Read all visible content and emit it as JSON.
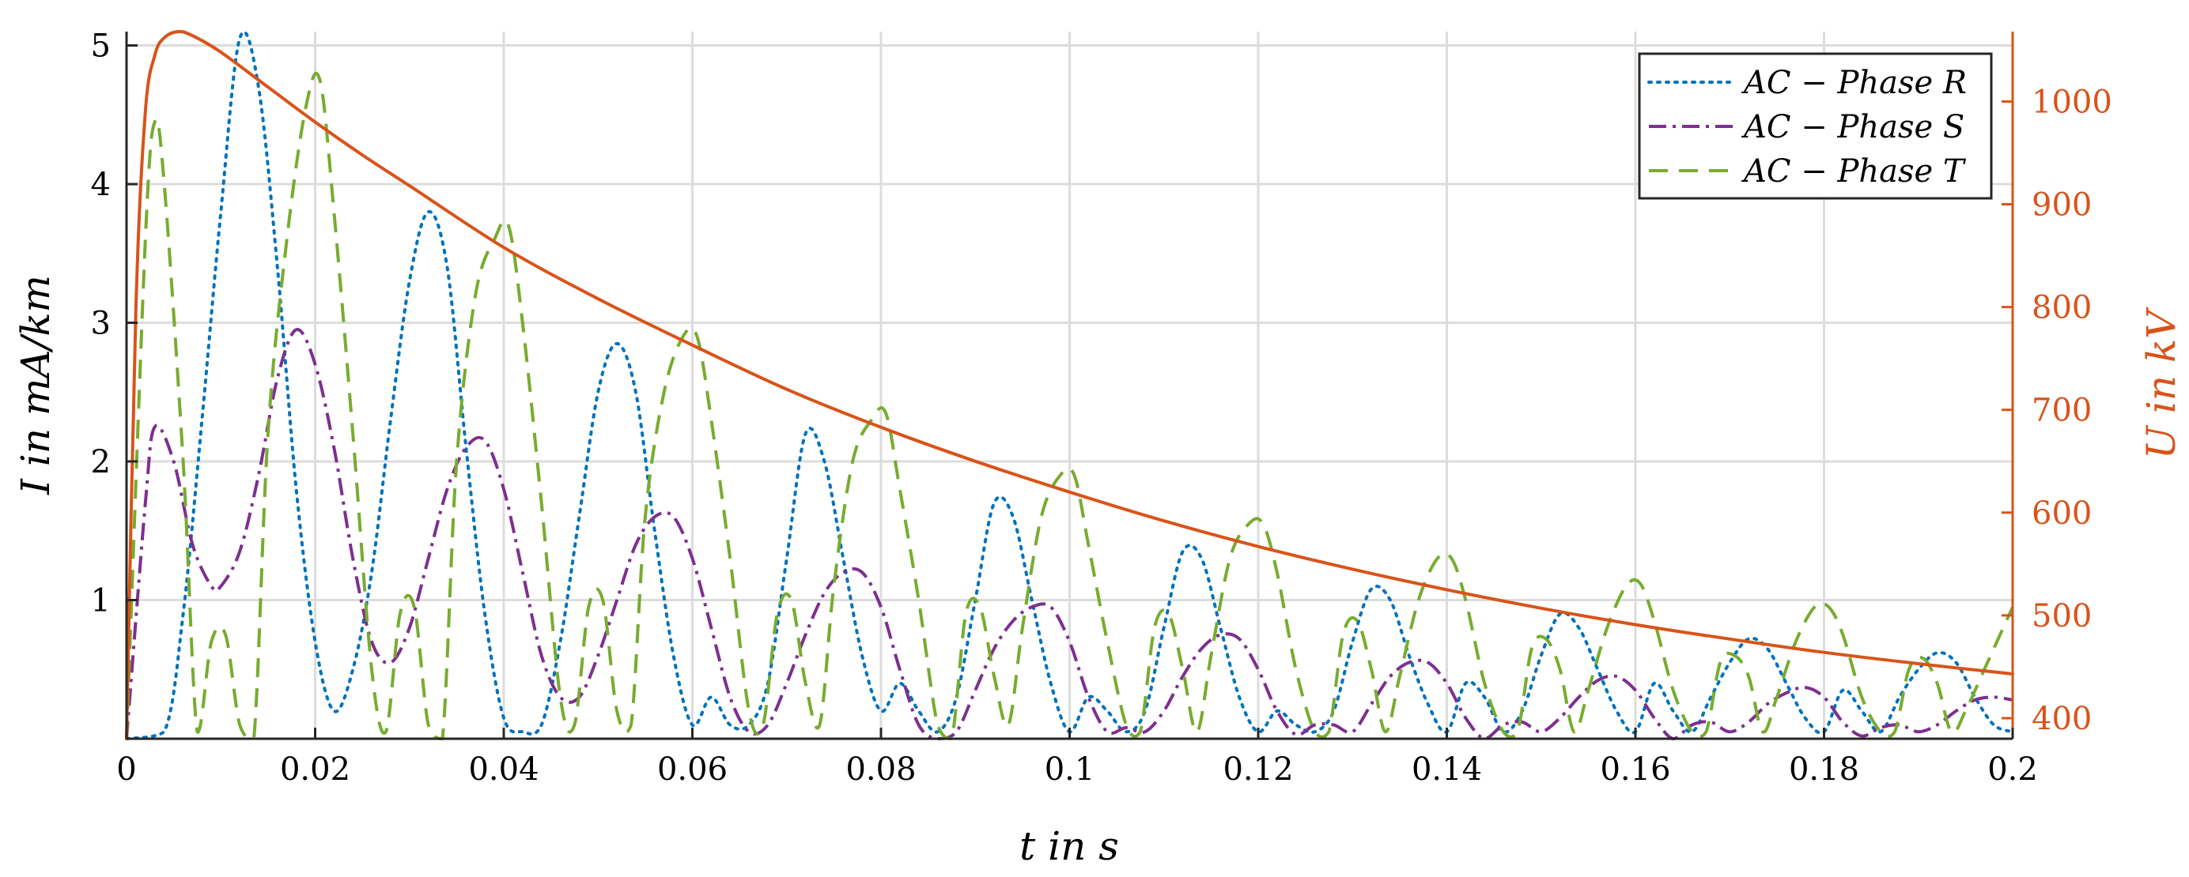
{
  "chart_data": {
    "type": "line",
    "xlabel": "t in s",
    "ylabel": "I in mA/km",
    "y2label": "U in kV",
    "xlim": [
      0,
      0.2
    ],
    "ylim": [
      0,
      5.1
    ],
    "y2lim": [
      380,
      1068
    ],
    "xticks": [
      0,
      0.02,
      0.04,
      0.06,
      0.08,
      0.1,
      0.12,
      0.14,
      0.16,
      0.18,
      0.2
    ],
    "xtick_labels": [
      "0",
      "0.02",
      "0.04",
      "0.06",
      "0.08",
      "0.1",
      "0.12",
      "0.14",
      "0.16",
      "0.18",
      "0.2"
    ],
    "yticks": [
      1,
      2,
      3,
      4,
      5
    ],
    "ytick_labels": [
      "1",
      "2",
      "3",
      "4",
      "5"
    ],
    "y2ticks": [
      400,
      500,
      600,
      700,
      800,
      900,
      1000
    ],
    "y2tick_labels": [
      "400",
      "500",
      "600",
      "700",
      "800",
      "900",
      "1000"
    ],
    "grid": true,
    "legend_position": "top-right",
    "series": [
      {
        "name": "AC − Phase R",
        "axis": "left",
        "style": "dotted",
        "color": "#0072BD",
        "x": [
          0,
          0.004,
          0.006,
          0.008,
          0.01,
          0.012,
          0.014,
          0.016,
          0.018,
          0.02,
          0.022,
          0.024,
          0.026,
          0.028,
          0.03,
          0.032,
          0.034,
          0.036,
          0.038,
          0.04,
          0.042,
          0.044,
          0.046,
          0.048,
          0.05,
          0.052,
          0.054,
          0.056,
          0.058,
          0.06,
          0.062,
          0.064,
          0.066,
          0.068,
          0.07,
          0.072,
          0.074,
          0.076,
          0.078,
          0.08,
          0.082,
          0.084,
          0.086,
          0.088,
          0.09,
          0.092,
          0.094,
          0.096,
          0.098,
          0.1,
          0.102,
          0.104,
          0.106,
          0.108,
          0.11,
          0.112,
          0.114,
          0.116,
          0.118,
          0.12,
          0.122,
          0.124,
          0.126,
          0.128,
          0.13,
          0.132,
          0.134,
          0.136,
          0.138,
          0.14,
          0.142,
          0.144,
          0.146,
          0.148,
          0.15,
          0.152,
          0.154,
          0.156,
          0.158,
          0.16,
          0.162,
          0.164,
          0.166,
          0.168,
          0.17,
          0.172,
          0.174,
          0.176,
          0.178,
          0.18,
          0.182,
          0.184,
          0.186,
          0.188,
          0.19,
          0.192,
          0.194,
          0.196,
          0.198,
          0.2
        ],
        "y": [
          0,
          0.05,
          0.9,
          2.3,
          3.8,
          5.05,
          4.7,
          3.4,
          1.8,
          0.7,
          0.2,
          0.5,
          1.2,
          2.3,
          3.3,
          3.8,
          3.4,
          2.1,
          0.9,
          0.15,
          0.05,
          0.1,
          0.7,
          1.6,
          2.5,
          2.85,
          2.5,
          1.5,
          0.6,
          0.1,
          0.3,
          0.1,
          0.1,
          0.4,
          1.3,
          2.2,
          2.0,
          1.3,
          0.6,
          0.2,
          0.4,
          0.2,
          0.05,
          0.3,
          1.0,
          1.7,
          1.6,
          1.0,
          0.4,
          0.05,
          0.3,
          0.2,
          0.05,
          0.2,
          0.8,
          1.35,
          1.3,
          0.8,
          0.3,
          0.05,
          0.2,
          0.1,
          0.05,
          0.2,
          0.7,
          1.08,
          1.0,
          0.6,
          0.25,
          0.05,
          0.4,
          0.3,
          0.05,
          0.2,
          0.6,
          0.9,
          0.8,
          0.5,
          0.2,
          0.05,
          0.4,
          0.2,
          0.05,
          0.3,
          0.55,
          0.72,
          0.65,
          0.4,
          0.15,
          0.05,
          0.35,
          0.2,
          0.05,
          0.3,
          0.5,
          0.62,
          0.55,
          0.3,
          0.1,
          0.05
        ]
      },
      {
        "name": "AC − Phase S",
        "axis": "left",
        "style": "dashdot",
        "color": "#7E2F8E",
        "x": [
          0,
          0.002,
          0.003,
          0.005,
          0.007,
          0.009,
          0.01,
          0.012,
          0.014,
          0.016,
          0.018,
          0.02,
          0.022,
          0.024,
          0.026,
          0.028,
          0.03,
          0.032,
          0.034,
          0.036,
          0.038,
          0.04,
          0.042,
          0.044,
          0.046,
          0.048,
          0.05,
          0.052,
          0.054,
          0.056,
          0.058,
          0.06,
          0.062,
          0.064,
          0.066,
          0.068,
          0.07,
          0.072,
          0.074,
          0.076,
          0.078,
          0.08,
          0.082,
          0.084,
          0.086,
          0.088,
          0.09,
          0.092,
          0.094,
          0.096,
          0.098,
          0.1,
          0.102,
          0.104,
          0.106,
          0.108,
          0.11,
          0.112,
          0.114,
          0.116,
          0.118,
          0.12,
          0.122,
          0.124,
          0.126,
          0.128,
          0.13,
          0.132,
          0.134,
          0.136,
          0.138,
          0.14,
          0.142,
          0.144,
          0.146,
          0.148,
          0.15,
          0.152,
          0.154,
          0.156,
          0.158,
          0.16,
          0.162,
          0.164,
          0.166,
          0.168,
          0.17,
          0.172,
          0.174,
          0.176,
          0.178,
          0.18,
          0.182,
          0.184,
          0.186,
          0.188,
          0.19,
          0.192,
          0.194,
          0.196,
          0.198,
          0.2
        ],
        "y": [
          0,
          1.7,
          2.25,
          2.0,
          1.4,
          1.1,
          1.1,
          1.35,
          1.9,
          2.6,
          2.95,
          2.7,
          2.1,
          1.3,
          0.7,
          0.55,
          0.8,
          1.3,
          1.8,
          2.1,
          2.15,
          1.8,
          1.2,
          0.6,
          0.3,
          0.3,
          0.6,
          1.0,
          1.4,
          1.6,
          1.6,
          1.3,
          0.8,
          0.3,
          0.05,
          0.1,
          0.4,
          0.75,
          1.05,
          1.2,
          1.2,
          0.95,
          0.5,
          0.1,
          0.0,
          0.05,
          0.35,
          0.65,
          0.85,
          0.95,
          0.95,
          0.7,
          0.3,
          0.05,
          0.08,
          0.05,
          0.2,
          0.45,
          0.65,
          0.75,
          0.72,
          0.5,
          0.2,
          0.03,
          0.1,
          0.1,
          0.05,
          0.25,
          0.45,
          0.55,
          0.55,
          0.4,
          0.15,
          0.0,
          0.1,
          0.12,
          0.05,
          0.15,
          0.3,
          0.42,
          0.45,
          0.35,
          0.15,
          0.0,
          0.1,
          0.12,
          0.05,
          0.12,
          0.25,
          0.33,
          0.37,
          0.3,
          0.12,
          0.02,
          0.08,
          0.1,
          0.05,
          0.1,
          0.2,
          0.28,
          0.3,
          0.28
        ]
      },
      {
        "name": "AC − Phase T",
        "axis": "left",
        "style": "dashed",
        "color": "#77AC30",
        "x": [
          0,
          0.002,
          0.003,
          0.004,
          0.006,
          0.0075,
          0.009,
          0.0105,
          0.012,
          0.0135,
          0.015,
          0.017,
          0.019,
          0.0205,
          0.022,
          0.024,
          0.026,
          0.0275,
          0.029,
          0.0305,
          0.032,
          0.0335,
          0.035,
          0.037,
          0.039,
          0.0405,
          0.042,
          0.044,
          0.046,
          0.0475,
          0.049,
          0.0505,
          0.052,
          0.0535,
          0.055,
          0.057,
          0.059,
          0.0605,
          0.062,
          0.064,
          0.066,
          0.0675,
          0.069,
          0.0705,
          0.072,
          0.0735,
          0.075,
          0.077,
          0.079,
          0.0805,
          0.082,
          0.084,
          0.086,
          0.0875,
          0.089,
          0.0905,
          0.092,
          0.0935,
          0.095,
          0.097,
          0.099,
          0.1005,
          0.102,
          0.104,
          0.106,
          0.1075,
          0.109,
          0.1105,
          0.112,
          0.1135,
          0.115,
          0.117,
          0.119,
          0.1205,
          0.122,
          0.124,
          0.126,
          0.1275,
          0.129,
          0.1305,
          0.132,
          0.1335,
          0.135,
          0.137,
          0.139,
          0.1405,
          0.142,
          0.144,
          0.146,
          0.1475,
          0.149,
          0.1505,
          0.152,
          0.1535,
          0.155,
          0.157,
          0.159,
          0.1605,
          0.162,
          0.164,
          0.166,
          0.1675,
          0.169,
          0.1705,
          0.172,
          0.1735,
          0.175,
          0.177,
          0.179,
          0.1805,
          0.182,
          0.184,
          0.186,
          0.1875,
          0.189,
          0.1905,
          0.192,
          0.1935,
          0.195,
          0.197,
          0.2
        ],
        "y": [
          0,
          3.6,
          4.45,
          4.0,
          2.0,
          0.05,
          0.7,
          0.75,
          0.1,
          0.0,
          2.2,
          3.6,
          4.55,
          4.75,
          3.8,
          2.2,
          0.5,
          0.05,
          0.9,
          0.95,
          0.1,
          0.0,
          2.0,
          3.2,
          3.6,
          3.7,
          3.0,
          1.7,
          0.3,
          0.1,
          0.95,
          1.0,
          0.2,
          0.1,
          1.6,
          2.5,
          2.9,
          2.9,
          2.3,
          1.3,
          0.2,
          0.1,
          0.9,
          1.0,
          0.4,
          0.1,
          1.1,
          2.0,
          2.3,
          2.35,
          1.8,
          1.0,
          0.1,
          0.0,
          0.9,
          0.95,
          0.45,
          0.1,
          0.8,
          1.6,
          1.9,
          1.9,
          1.4,
          0.7,
          0.1,
          0.05,
          0.8,
          0.9,
          0.5,
          0.05,
          0.6,
          1.3,
          1.55,
          1.55,
          1.2,
          0.5,
          0.05,
          0.05,
          0.75,
          0.85,
          0.5,
          0.05,
          0.45,
          1.0,
          1.3,
          1.3,
          1.0,
          0.4,
          0.05,
          0.05,
          0.65,
          0.72,
          0.5,
          0.05,
          0.35,
          0.8,
          1.1,
          1.12,
          0.85,
          0.35,
          0.05,
          0.05,
          0.55,
          0.6,
          0.45,
          0.05,
          0.3,
          0.7,
          0.95,
          0.95,
          0.75,
          0.3,
          0.05,
          0.05,
          0.5,
          0.58,
          0.4,
          0.05,
          0.2,
          0.5,
          0.95
        ]
      },
      {
        "name": "",
        "axis": "right",
        "style": "solid",
        "color": "#D95319",
        "x": [
          0,
          0.001,
          0.002,
          0.003,
          0.004,
          0.0055,
          0.007,
          0.01,
          0.015,
          0.02,
          0.025,
          0.03,
          0.04,
          0.05,
          0.06,
          0.07,
          0.08,
          0.09,
          0.1,
          0.11,
          0.12,
          0.13,
          0.14,
          0.15,
          0.16,
          0.17,
          0.18,
          0.19,
          0.2
        ],
        "y": [
          380,
          800,
          990,
          1045,
          1062,
          1068,
          1064,
          1048,
          1014,
          980,
          948,
          918,
          858,
          808,
          763,
          720,
          683,
          650,
          620,
          592,
          567,
          545,
          525,
          507,
          491,
          477,
          464,
          453,
          443
        ]
      }
    ]
  }
}
